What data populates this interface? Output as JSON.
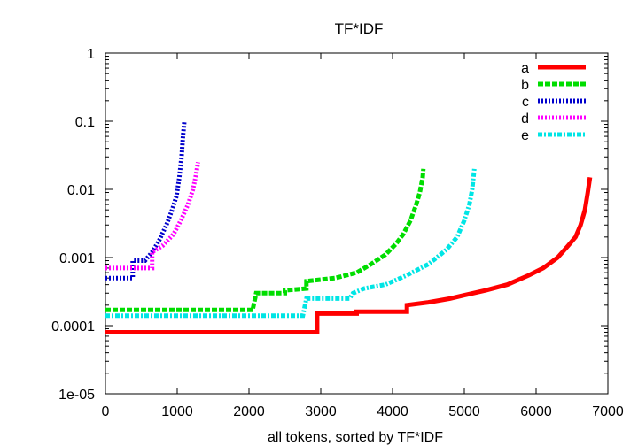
{
  "chart_data": {
    "type": "line",
    "title": "TF*IDF",
    "xlabel": "all tokens, sorted by TF*IDF",
    "ylabel": "",
    "xlim": [
      0,
      7000
    ],
    "ylim": [
      1e-05,
      1
    ],
    "yscale": "log",
    "grid": false,
    "legend_position": "top-right",
    "x_ticks": [
      "0",
      "1000",
      "2000",
      "3000",
      "4000",
      "5000",
      "6000",
      "7000"
    ],
    "y_ticks": [
      "1e-05",
      "0.0001",
      "0.001",
      "0.01",
      "0.1",
      "1"
    ],
    "series": [
      {
        "name": "a",
        "color": "#ff0000",
        "dash": "solid",
        "points": [
          [
            0,
            8e-05
          ],
          [
            2950,
            8e-05
          ],
          [
            2950,
            0.00015
          ],
          [
            3500,
            0.00015
          ],
          [
            3500,
            0.00016
          ],
          [
            4200,
            0.00016
          ],
          [
            4200,
            0.0002
          ],
          [
            4500,
            0.00022
          ],
          [
            4800,
            0.00025
          ],
          [
            5000,
            0.00028
          ],
          [
            5300,
            0.00033
          ],
          [
            5600,
            0.0004
          ],
          [
            5900,
            0.00055
          ],
          [
            6100,
            0.0007
          ],
          [
            6300,
            0.001
          ],
          [
            6450,
            0.0015
          ],
          [
            6550,
            0.002
          ],
          [
            6620,
            0.003
          ],
          [
            6680,
            0.005
          ],
          [
            6720,
            0.009
          ],
          [
            6750,
            0.015
          ]
        ]
      },
      {
        "name": "b",
        "color": "#00dd00",
        "dash": "dashed",
        "points": [
          [
            0,
            0.00017
          ],
          [
            2050,
            0.00017
          ],
          [
            2100,
            0.0003
          ],
          [
            2500,
            0.0003
          ],
          [
            2500,
            0.00033
          ],
          [
            2800,
            0.00035
          ],
          [
            2800,
            0.00045
          ],
          [
            3200,
            0.0005
          ],
          [
            3500,
            0.0006
          ],
          [
            3700,
            0.0008
          ],
          [
            3900,
            0.0011
          ],
          [
            4050,
            0.0016
          ],
          [
            4150,
            0.0022
          ],
          [
            4250,
            0.0035
          ],
          [
            4330,
            0.006
          ],
          [
            4380,
            0.009
          ],
          [
            4420,
            0.015
          ],
          [
            4430,
            0.02
          ]
        ]
      },
      {
        "name": "c",
        "color": "#0000cc",
        "dash": "dotted",
        "points": [
          [
            0,
            0.0005
          ],
          [
            380,
            0.0005
          ],
          [
            380,
            0.0009
          ],
          [
            550,
            0.0009
          ],
          [
            650,
            0.0012
          ],
          [
            750,
            0.0018
          ],
          [
            850,
            0.003
          ],
          [
            930,
            0.005
          ],
          [
            990,
            0.008
          ],
          [
            1030,
            0.015
          ],
          [
            1060,
            0.03
          ],
          [
            1080,
            0.06
          ],
          [
            1100,
            0.1
          ]
        ]
      },
      {
        "name": "d",
        "color": "#ff00ff",
        "dash": "dotted",
        "points": [
          [
            0,
            0.0007
          ],
          [
            650,
            0.0007
          ],
          [
            650,
            0.0012
          ],
          [
            800,
            0.0015
          ],
          [
            950,
            0.0022
          ],
          [
            1050,
            0.0035
          ],
          [
            1150,
            0.006
          ],
          [
            1220,
            0.01
          ],
          [
            1260,
            0.016
          ],
          [
            1290,
            0.025
          ]
        ]
      },
      {
        "name": "e",
        "color": "#00e5e5",
        "dash": "dashdot",
        "points": [
          [
            0,
            0.00014
          ],
          [
            2750,
            0.00014
          ],
          [
            2800,
            0.00025
          ],
          [
            3400,
            0.00025
          ],
          [
            3450,
            0.0003
          ],
          [
            3600,
            0.00035
          ],
          [
            3900,
            0.0004
          ],
          [
            4200,
            0.00055
          ],
          [
            4500,
            0.0008
          ],
          [
            4750,
            0.0013
          ],
          [
            4900,
            0.002
          ],
          [
            5000,
            0.0035
          ],
          [
            5070,
            0.006
          ],
          [
            5110,
            0.01
          ],
          [
            5140,
            0.02
          ]
        ]
      }
    ]
  }
}
